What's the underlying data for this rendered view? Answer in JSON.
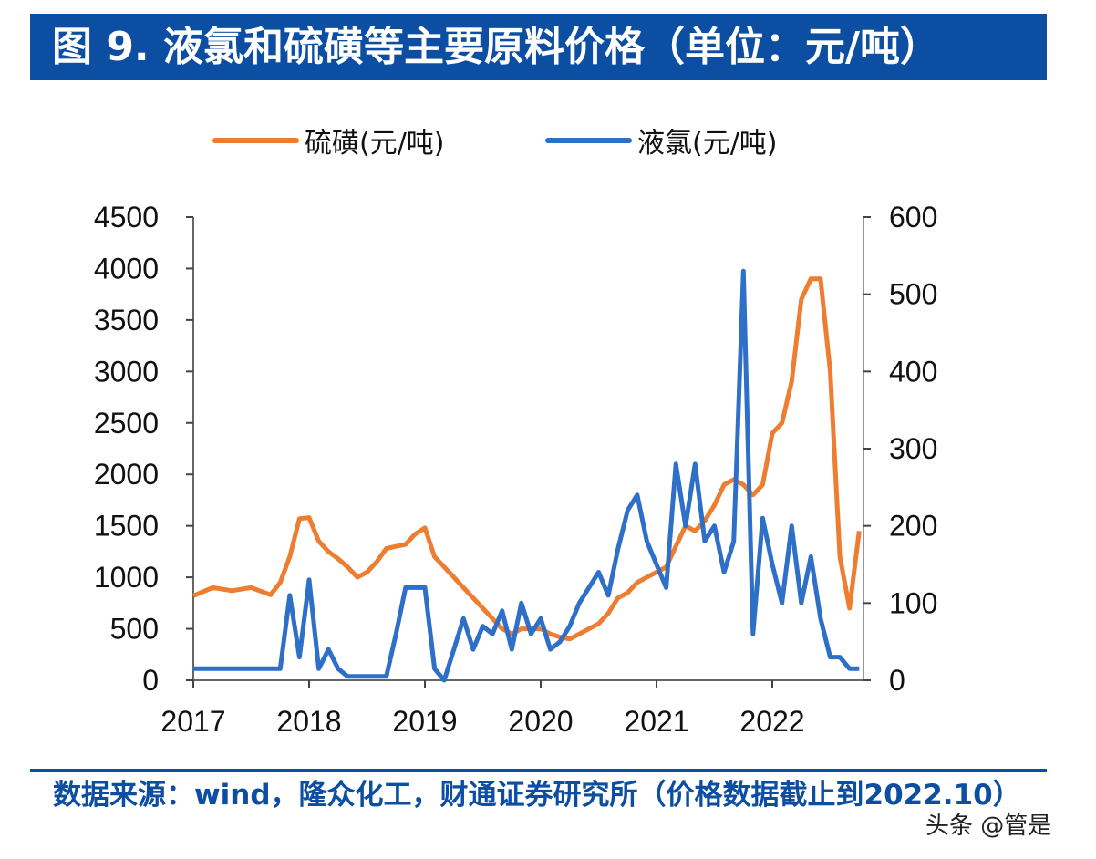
{
  "title": "图 9. 液氯和硫磺等主要原料价格（单位：元/吨）",
  "source": "数据来源：wind，隆众化工，财通证券研究所（价格数据截止到2022.10）",
  "watermark": "头条 @管是",
  "chart_data": {
    "type": "line",
    "title": "",
    "xlabel": "",
    "ylabel": "",
    "legend_position": "top",
    "grid": false,
    "x_ticks": [
      "2017",
      "2018",
      "2019",
      "2020",
      "2021",
      "2022"
    ],
    "y_left": {
      "range": [
        0,
        4500
      ],
      "ticks": [
        "0",
        "500",
        "1000",
        "1500",
        "2000",
        "2500",
        "3000",
        "3500",
        "4000",
        "4500"
      ]
    },
    "y_right": {
      "range": [
        0,
        600
      ],
      "ticks": [
        "0",
        "100",
        "200",
        "300",
        "400",
        "500",
        "600"
      ]
    },
    "series": [
      {
        "name": "硫磺(元/吨)",
        "axis": "left",
        "color": "#ed7d31",
        "x": [
          "2017-01",
          "2017-03",
          "2017-05",
          "2017-07",
          "2017-09",
          "2017-10",
          "2017-11",
          "2017-12",
          "2018-01",
          "2018-02",
          "2018-03",
          "2018-04",
          "2018-05",
          "2018-06",
          "2018-07",
          "2018-08",
          "2018-09",
          "2018-10",
          "2018-11",
          "2018-12",
          "2019-01",
          "2019-02",
          "2019-03",
          "2019-04",
          "2019-05",
          "2019-06",
          "2019-07",
          "2019-08",
          "2019-09",
          "2019-10",
          "2019-11",
          "2019-12",
          "2020-01",
          "2020-02",
          "2020-03",
          "2020-04",
          "2020-05",
          "2020-06",
          "2020-07",
          "2020-08",
          "2020-09",
          "2020-10",
          "2020-11",
          "2020-12",
          "2021-01",
          "2021-02",
          "2021-03",
          "2021-04",
          "2021-05",
          "2021-06",
          "2021-07",
          "2021-08",
          "2021-09",
          "2021-10",
          "2021-11",
          "2021-12",
          "2022-01",
          "2022-02",
          "2022-03",
          "2022-04",
          "2022-05",
          "2022-06",
          "2022-07",
          "2022-08",
          "2022-09",
          "2022-10"
        ],
        "values": [
          820,
          900,
          870,
          900,
          830,
          950,
          1200,
          1570,
          1580,
          1350,
          1250,
          1180,
          1100,
          1000,
          1050,
          1150,
          1280,
          1300,
          1320,
          1420,
          1480,
          1200,
          1100,
          1000,
          900,
          800,
          700,
          600,
          500,
          450,
          500,
          500,
          500,
          450,
          420,
          400,
          450,
          500,
          550,
          650,
          800,
          850,
          950,
          1000,
          1050,
          1100,
          1300,
          1500,
          1450,
          1550,
          1700,
          1900,
          1950,
          1900,
          1800,
          1900,
          2400,
          2500,
          2900,
          3700,
          3900,
          3900,
          3000,
          1200,
          700,
          1450
        ]
      },
      {
        "name": "液氯(元/吨)",
        "axis": "right",
        "color": "#2e6fc7",
        "x": [
          "2017-01",
          "2017-03",
          "2017-05",
          "2017-07",
          "2017-09",
          "2017-10",
          "2017-11",
          "2017-12",
          "2018-01",
          "2018-02",
          "2018-03",
          "2018-04",
          "2018-05",
          "2018-06",
          "2018-07",
          "2018-08",
          "2018-09",
          "2018-10",
          "2018-11",
          "2018-12",
          "2019-01",
          "2019-02",
          "2019-03",
          "2019-04",
          "2019-05",
          "2019-06",
          "2019-07",
          "2019-08",
          "2019-09",
          "2019-10",
          "2019-11",
          "2019-12",
          "2020-01",
          "2020-02",
          "2020-03",
          "2020-04",
          "2020-05",
          "2020-06",
          "2020-07",
          "2020-08",
          "2020-09",
          "2020-10",
          "2020-11",
          "2020-12",
          "2021-01",
          "2021-02",
          "2021-03",
          "2021-04",
          "2021-05",
          "2021-06",
          "2021-07",
          "2021-08",
          "2021-09",
          "2021-10",
          "2021-11",
          "2021-12",
          "2022-01",
          "2022-02",
          "2022-03",
          "2022-04",
          "2022-05",
          "2022-06",
          "2022-07",
          "2022-08",
          "2022-09",
          "2022-10"
        ],
        "values": [
          15,
          15,
          15,
          15,
          15,
          15,
          110,
          30,
          130,
          15,
          40,
          15,
          5,
          5,
          5,
          5,
          5,
          60,
          120,
          120,
          120,
          15,
          0,
          40,
          80,
          40,
          70,
          60,
          90,
          40,
          100,
          60,
          80,
          40,
          50,
          70,
          100,
          120,
          140,
          110,
          170,
          220,
          240,
          180,
          150,
          120,
          280,
          200,
          280,
          180,
          200,
          140,
          180,
          530,
          60,
          210,
          150,
          100,
          200,
          100,
          160,
          80,
          30,
          30,
          15,
          15
        ]
      }
    ]
  }
}
